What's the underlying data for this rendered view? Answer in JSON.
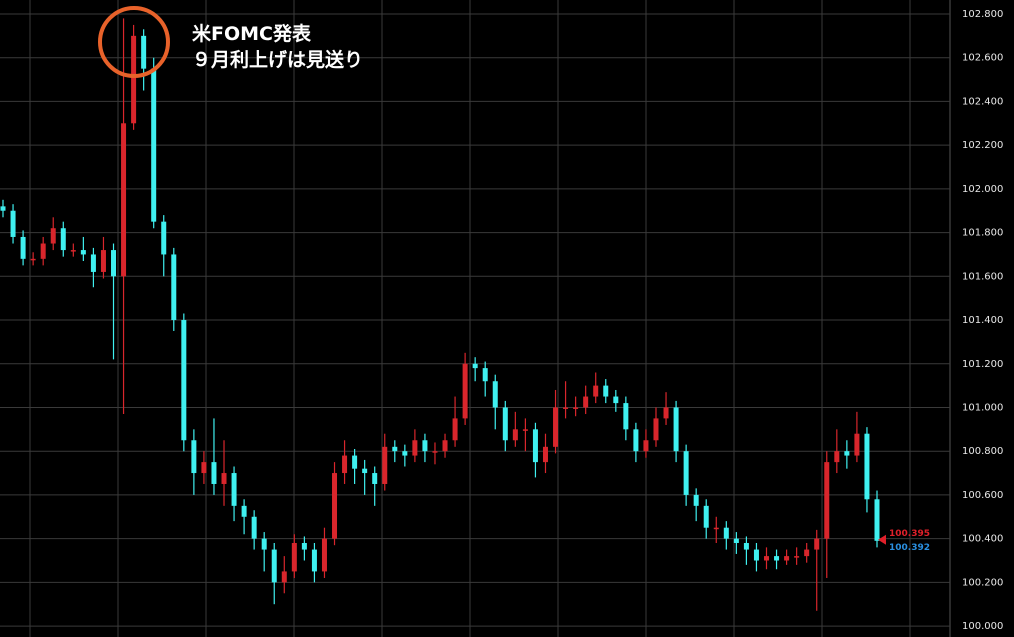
{
  "chart_data": {
    "type": "candlestick",
    "annotation_lines": [
      "米FOMC発表",
      "９月利上げは見送り"
    ],
    "up_color": "#d9262c",
    "down_color": "#3ff0f0",
    "grid": true,
    "ylim": [
      99.95,
      102.864
    ],
    "yticks": [
      {
        "value": 100.0,
        "label": "100.000"
      },
      {
        "value": 100.2,
        "label": "100.200"
      },
      {
        "value": 100.4,
        "label": "100.400"
      },
      {
        "value": 100.6,
        "label": "100.600"
      },
      {
        "value": 100.8,
        "label": "100.800"
      },
      {
        "value": 101.0,
        "label": "101.000"
      },
      {
        "value": 101.2,
        "label": "101.200"
      },
      {
        "value": 101.4,
        "label": "101.400"
      },
      {
        "value": 101.6,
        "label": "101.600"
      },
      {
        "value": 101.8,
        "label": "101.800"
      },
      {
        "value": 102.0,
        "label": "102.000"
      },
      {
        "value": 102.2,
        "label": "102.200"
      },
      {
        "value": 102.4,
        "label": "102.400"
      },
      {
        "value": 102.6,
        "label": "102.600"
      },
      {
        "value": 102.8,
        "label": "102.800"
      }
    ],
    "price_markers": [
      {
        "value": 100.395,
        "color": "#e0202a"
      },
      {
        "value": 100.392,
        "color": "#2a8fe0"
      }
    ],
    "open": [
      101.92,
      101.9,
      101.78,
      101.68,
      101.68,
      101.75,
      101.82,
      101.72,
      101.72,
      101.7,
      101.62,
      101.72,
      101.6,
      102.3,
      102.7,
      102.55,
      101.85,
      101.7,
      101.4,
      100.85,
      100.7,
      100.75,
      100.65,
      100.7,
      100.55,
      100.5,
      100.4,
      100.35,
      100.2,
      100.25,
      100.38,
      100.35,
      100.25,
      100.4,
      100.7,
      100.78,
      100.72,
      100.7,
      100.65,
      100.82,
      100.8,
      100.78,
      100.85,
      100.8,
      100.8,
      100.85,
      100.95,
      101.2,
      101.18,
      101.12,
      101.0,
      100.85,
      100.9,
      100.9,
      100.75,
      100.82,
      101.0,
      101.0,
      101.0,
      101.05,
      101.1,
      101.05,
      101.02,
      100.9,
      100.8,
      100.85,
      100.95,
      101.0,
      100.8,
      100.6,
      100.55,
      100.45,
      100.45,
      100.4,
      100.38,
      100.35,
      100.3,
      100.32,
      100.3,
      100.32,
      100.32,
      100.35,
      100.4,
      100.75,
      100.8,
      100.78,
      100.88,
      100.58
    ],
    "high": [
      101.95,
      101.93,
      101.81,
      101.71,
      101.78,
      101.87,
      101.85,
      101.75,
      101.78,
      101.73,
      101.78,
      101.75,
      102.78,
      102.75,
      102.73,
      102.6,
      101.88,
      101.73,
      101.43,
      100.9,
      100.8,
      100.95,
      100.85,
      100.73,
      100.58,
      100.53,
      100.43,
      100.38,
      100.32,
      100.42,
      100.41,
      100.38,
      100.45,
      100.75,
      100.85,
      100.81,
      100.76,
      100.73,
      100.88,
      100.85,
      100.83,
      100.9,
      100.88,
      100.84,
      100.88,
      101.05,
      101.25,
      101.23,
      101.21,
      101.15,
      101.03,
      100.98,
      100.95,
      100.93,
      100.88,
      101.08,
      101.12,
      101.05,
      101.1,
      101.16,
      101.13,
      101.08,
      101.05,
      100.93,
      100.9,
      101.0,
      101.07,
      101.03,
      100.83,
      100.63,
      100.58,
      100.5,
      100.48,
      100.43,
      100.41,
      100.38,
      100.36,
      100.35,
      100.35,
      100.36,
      100.38,
      100.44,
      100.8,
      100.9,
      100.85,
      100.98,
      100.91,
      100.62
    ],
    "low": [
      101.87,
      101.75,
      101.65,
      101.65,
      101.65,
      101.72,
      101.69,
      101.69,
      101.67,
      101.55,
      101.59,
      101.22,
      100.97,
      102.27,
      102.45,
      101.82,
      101.6,
      101.35,
      100.8,
      100.6,
      100.65,
      100.6,
      100.55,
      100.48,
      100.42,
      100.35,
      100.25,
      100.1,
      100.15,
      100.22,
      100.3,
      100.2,
      100.22,
      100.37,
      100.65,
      100.65,
      100.6,
      100.55,
      100.62,
      100.75,
      100.73,
      100.75,
      100.75,
      100.74,
      100.77,
      100.82,
      100.92,
      101.12,
      101.05,
      100.9,
      100.8,
      100.82,
      100.8,
      100.68,
      100.7,
      100.79,
      100.95,
      100.96,
      100.97,
      101.02,
      101.02,
      100.98,
      100.85,
      100.75,
      100.77,
      100.82,
      100.92,
      100.75,
      100.55,
      100.48,
      100.4,
      100.38,
      100.35,
      100.33,
      100.28,
      100.25,
      100.26,
      100.26,
      100.28,
      100.28,
      100.29,
      100.07,
      100.22,
      100.7,
      100.72,
      100.75,
      100.52,
      100.36
    ],
    "close": [
      101.9,
      101.78,
      101.68,
      101.68,
      101.75,
      101.82,
      101.72,
      101.72,
      101.7,
      101.62,
      101.72,
      101.6,
      102.3,
      102.7,
      102.55,
      101.85,
      101.7,
      101.4,
      100.85,
      100.7,
      100.75,
      100.65,
      100.7,
      100.55,
      100.5,
      100.4,
      100.35,
      100.2,
      100.25,
      100.38,
      100.35,
      100.25,
      100.4,
      100.7,
      100.78,
      100.72,
      100.7,
      100.65,
      100.82,
      100.8,
      100.78,
      100.85,
      100.8,
      100.8,
      100.85,
      100.95,
      101.2,
      101.18,
      101.12,
      101.0,
      100.85,
      100.9,
      100.9,
      100.75,
      100.82,
      101.0,
      101.0,
      101.0,
      101.05,
      101.1,
      101.05,
      101.02,
      100.9,
      100.8,
      100.85,
      100.95,
      101.0,
      100.8,
      100.6,
      100.55,
      100.45,
      100.45,
      100.4,
      100.38,
      100.35,
      100.3,
      100.32,
      100.3,
      100.32,
      100.32,
      100.35,
      100.4,
      100.75,
      100.8,
      100.78,
      100.88,
      100.58,
      100.39
    ]
  }
}
